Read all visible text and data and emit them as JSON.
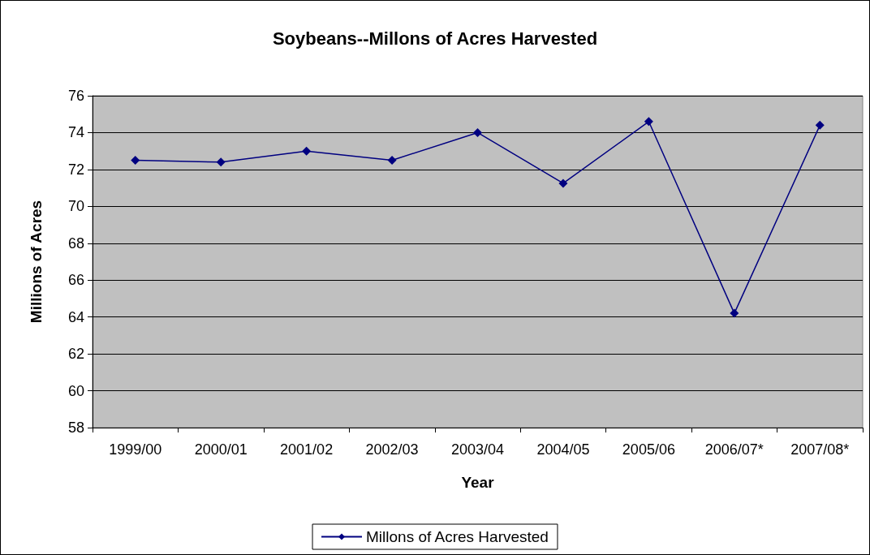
{
  "chart_data": {
    "type": "line",
    "title": "Soybeans--Millons of Acres Harvested",
    "xlabel": "Year",
    "ylabel": "Millions of Acres",
    "categories": [
      "1999/00",
      "2000/01",
      "2001/02",
      "2002/03",
      "2003/04",
      "2004/05",
      "2005/06",
      "2006/07*",
      "2007/08*"
    ],
    "series": [
      {
        "name": "Millons of Acres Harvested",
        "color": "#000080",
        "values": [
          72.5,
          72.4,
          73.0,
          72.5,
          74.0,
          71.25,
          74.6,
          64.2,
          74.4
        ]
      }
    ],
    "ylim": [
      58,
      76
    ],
    "yticks": [
      58,
      60,
      62,
      64,
      66,
      68,
      70,
      72,
      74,
      76
    ],
    "grid": "y",
    "legend": "bottom",
    "marker": "diamond",
    "line_style": "solid"
  }
}
